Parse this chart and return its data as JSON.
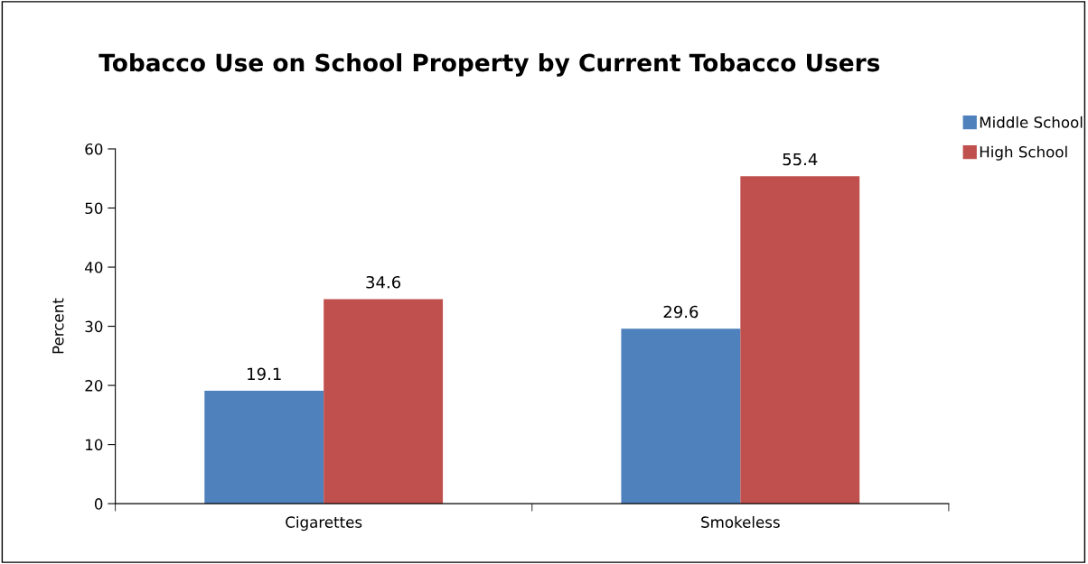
{
  "chart_data": {
    "type": "bar",
    "title": "Tobacco Use on School Property by Current Tobacco Users",
    "ylabel": "Percent",
    "categories": [
      "Cigarettes",
      "Smokeless"
    ],
    "series": [
      {
        "name": "Middle School",
        "color": "#4f81bd",
        "values": [
          19.1,
          29.6
        ]
      },
      {
        "name": "High School",
        "color": "#c0504d",
        "values": [
          34.6,
          55.4
        ]
      }
    ],
    "ylim": [
      0,
      60
    ],
    "yticks": [
      0,
      10,
      20,
      30,
      40,
      50,
      60
    ],
    "data_labels": true,
    "grid": false,
    "legend": "top right"
  }
}
